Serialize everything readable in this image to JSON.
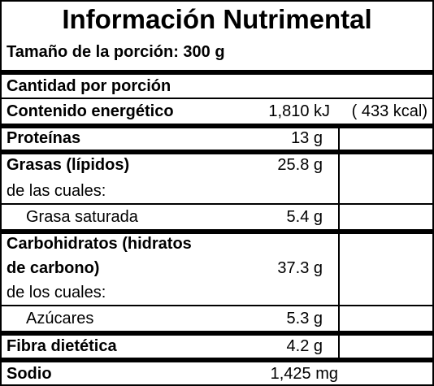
{
  "title": "Información Nutrimental",
  "serving_size": "Tamaño de la porción: 300 g",
  "per_serving_header": "Cantidad por porción",
  "rows": {
    "energy": {
      "label": "Contenido energético",
      "value": "1,810 kJ",
      "value2": "( 433 kcal)"
    },
    "protein": {
      "label": "Proteínas",
      "value": "13 g"
    },
    "fats": {
      "label": "Grasas (lípidos)",
      "value": "25.8 g"
    },
    "fats_of_which": {
      "label": "de las cuales:"
    },
    "saturated": {
      "label": "Grasa saturada",
      "value": "5.4 g"
    },
    "carbs_line1": {
      "label": "Carbohidratos (hidratos"
    },
    "carbs_line2": {
      "label": "de carbono)",
      "value": "37.3 g"
    },
    "carbs_of_which": {
      "label": "de los cuales:"
    },
    "sugars": {
      "label": "Azúcares",
      "value": "5.3 g"
    },
    "fiber": {
      "label": "Fibra dietética",
      "value": "4.2 g"
    },
    "sodium": {
      "label": "Sodio",
      "value": "1,425 mg"
    }
  }
}
